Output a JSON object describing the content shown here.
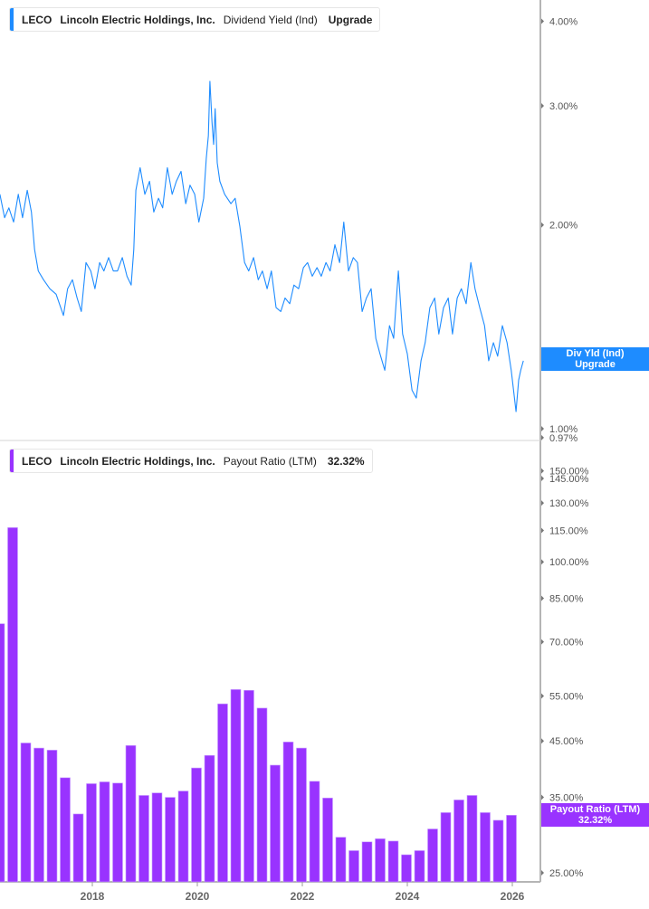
{
  "top_panel": {
    "legend": {
      "ticker": "LECO",
      "company": "Lincoln Electric Holdings, Inc.",
      "metric": "Dividend Yield (Ind)",
      "value": "Upgrade"
    },
    "flag": {
      "line1": "Div Yld (Ind)",
      "line2": "Upgrade"
    },
    "color": "#1E8CFF"
  },
  "bottom_panel": {
    "legend": {
      "ticker": "LECO",
      "company": "Lincoln Electric Holdings, Inc.",
      "metric": "Payout Ratio (LTM)",
      "value": "32.32%"
    },
    "flag": {
      "line1": "Payout Ratio (LTM)",
      "line2": "32.32%"
    },
    "color": "#9933FF"
  },
  "chart_data": [
    {
      "type": "line",
      "title": "Dividend Yield (Ind)",
      "y_scale": "log",
      "ylim": [
        0.97,
        4.2
      ],
      "y_ticks": [
        {
          "v": 4.0,
          "label": "4.00%"
        },
        {
          "v": 3.0,
          "label": "3.00%"
        },
        {
          "v": 2.0,
          "label": "2.00%"
        },
        {
          "v": 1.0,
          "label": "1.00%"
        },
        {
          "v": 0.97,
          "label": "0.97%"
        }
      ],
      "x_unit": "year",
      "x": [
        2016.24,
        2016.33,
        2016.41,
        2016.5,
        2016.59,
        2016.67,
        2016.76,
        2016.84,
        2016.9,
        2016.97,
        2017.07,
        2017.19,
        2017.31,
        2017.45,
        2017.53,
        2017.62,
        2017.71,
        2017.79,
        2017.88,
        2017.97,
        2018.05,
        2018.14,
        2018.22,
        2018.31,
        2018.4,
        2018.48,
        2018.57,
        2018.66,
        2018.74,
        2018.79,
        2018.83,
        2018.91,
        2019.0,
        2019.09,
        2019.17,
        2019.26,
        2019.34,
        2019.43,
        2019.52,
        2019.6,
        2019.69,
        2019.78,
        2019.86,
        2019.95,
        2020.03,
        2020.12,
        2020.17,
        2020.21,
        2020.24,
        2020.28,
        2020.31,
        2020.34,
        2020.38,
        2020.43,
        2020.52,
        2020.64,
        2020.72,
        2020.81,
        2020.9,
        2020.98,
        2021.07,
        2021.16,
        2021.24,
        2021.33,
        2021.41,
        2021.5,
        2021.59,
        2021.67,
        2021.76,
        2021.84,
        2021.93,
        2022.02,
        2022.1,
        2022.19,
        2022.28,
        2022.36,
        2022.45,
        2022.53,
        2022.62,
        2022.71,
        2022.79,
        2022.88,
        2022.97,
        2023.05,
        2023.14,
        2023.22,
        2023.31,
        2023.4,
        2023.48,
        2023.57,
        2023.66,
        2023.74,
        2023.83,
        2023.91,
        2024.0,
        2024.09,
        2024.17,
        2024.26,
        2024.34,
        2024.43,
        2024.52,
        2024.6,
        2024.69,
        2024.78,
        2024.86,
        2024.95,
        2025.03,
        2025.12,
        2025.21,
        2025.29,
        2025.38,
        2025.47,
        2025.55,
        2025.64,
        2025.72,
        2025.81,
        2025.9,
        2025.98,
        2026.07,
        2026.12,
        2026.16,
        2026.21
      ],
      "values": [
        2.22,
        2.05,
        2.12,
        2.02,
        2.22,
        2.05,
        2.25,
        2.09,
        1.84,
        1.71,
        1.66,
        1.61,
        1.58,
        1.47,
        1.61,
        1.66,
        1.56,
        1.49,
        1.76,
        1.71,
        1.61,
        1.76,
        1.71,
        1.79,
        1.71,
        1.71,
        1.79,
        1.68,
        1.63,
        1.84,
        2.25,
        2.43,
        2.22,
        2.32,
        2.09,
        2.19,
        2.12,
        2.43,
        2.22,
        2.32,
        2.4,
        2.15,
        2.29,
        2.22,
        2.02,
        2.19,
        2.51,
        2.71,
        3.26,
        2.84,
        2.63,
        2.97,
        2.47,
        2.32,
        2.22,
        2.15,
        2.19,
        1.99,
        1.76,
        1.71,
        1.79,
        1.66,
        1.71,
        1.61,
        1.71,
        1.51,
        1.49,
        1.56,
        1.53,
        1.63,
        1.61,
        1.73,
        1.76,
        1.68,
        1.73,
        1.68,
        1.76,
        1.71,
        1.87,
        1.76,
        2.02,
        1.71,
        1.79,
        1.76,
        1.49,
        1.56,
        1.61,
        1.36,
        1.29,
        1.22,
        1.42,
        1.36,
        1.71,
        1.38,
        1.29,
        1.14,
        1.11,
        1.26,
        1.34,
        1.51,
        1.56,
        1.38,
        1.51,
        1.56,
        1.38,
        1.56,
        1.61,
        1.53,
        1.76,
        1.61,
        1.51,
        1.42,
        1.26,
        1.34,
        1.28,
        1.42,
        1.34,
        1.22,
        1.06,
        1.18,
        1.22,
        1.26
      ]
    },
    {
      "type": "bar",
      "title": "Payout Ratio (LTM)",
      "y_scale": "log",
      "ylim": [
        24,
        155
      ],
      "y_ticks": [
        {
          "v": 150,
          "label": "150.00%"
        },
        {
          "v": 145,
          "label": "145.00%"
        },
        {
          "v": 130,
          "label": "130.00%"
        },
        {
          "v": 115,
          "label": "115.00%"
        },
        {
          "v": 100,
          "label": "100.00%"
        },
        {
          "v": 85,
          "label": "85.00%"
        },
        {
          "v": 70,
          "label": "70.00%"
        },
        {
          "v": 55,
          "label": "55.00%"
        },
        {
          "v": 45,
          "label": "45.00%"
        },
        {
          "v": 35,
          "label": "35.00%"
        },
        {
          "v": 25,
          "label": "25.00%"
        }
      ],
      "x_ticks": [
        "2018",
        "2020",
        "2022",
        "2024",
        "2026"
      ],
      "categories": [
        "2016-Q1",
        "2016-Q2",
        "2016-Q3",
        "2016-Q4",
        "2017-Q1",
        "2017-Q2",
        "2017-Q3",
        "2017-Q4",
        "2018-Q1",
        "2018-Q2",
        "2018-Q3",
        "2018-Q4",
        "2019-Q1",
        "2019-Q2",
        "2019-Q3",
        "2019-Q4",
        "2020-Q1",
        "2020-Q2",
        "2020-Q3",
        "2020-Q4",
        "2021-Q1",
        "2021-Q2",
        "2021-Q3",
        "2021-Q4",
        "2022-Q1",
        "2022-Q2",
        "2022-Q3",
        "2022-Q4",
        "2023-Q1",
        "2023-Q2",
        "2023-Q3",
        "2023-Q4",
        "2024-Q1",
        "2024-Q2",
        "2024-Q3",
        "2024-Q4",
        "2025-Q1",
        "2025-Q2",
        "2025-Q3",
        "2025-Q4"
      ],
      "values": [
        75.9,
        116.5,
        44.6,
        43.6,
        43.2,
        38.2,
        32.5,
        37.2,
        37.5,
        37.3,
        44.1,
        35.3,
        35.7,
        35.0,
        36.0,
        39.9,
        42.2,
        53.1,
        56.6,
        56.4,
        52.1,
        40.4,
        44.8,
        43.6,
        37.6,
        34.9,
        29.3,
        27.6,
        28.7,
        29.1,
        28.8,
        27.1,
        27.6,
        30.4,
        32.7,
        34.6,
        35.3,
        32.7,
        31.6,
        32.32
      ]
    }
  ]
}
